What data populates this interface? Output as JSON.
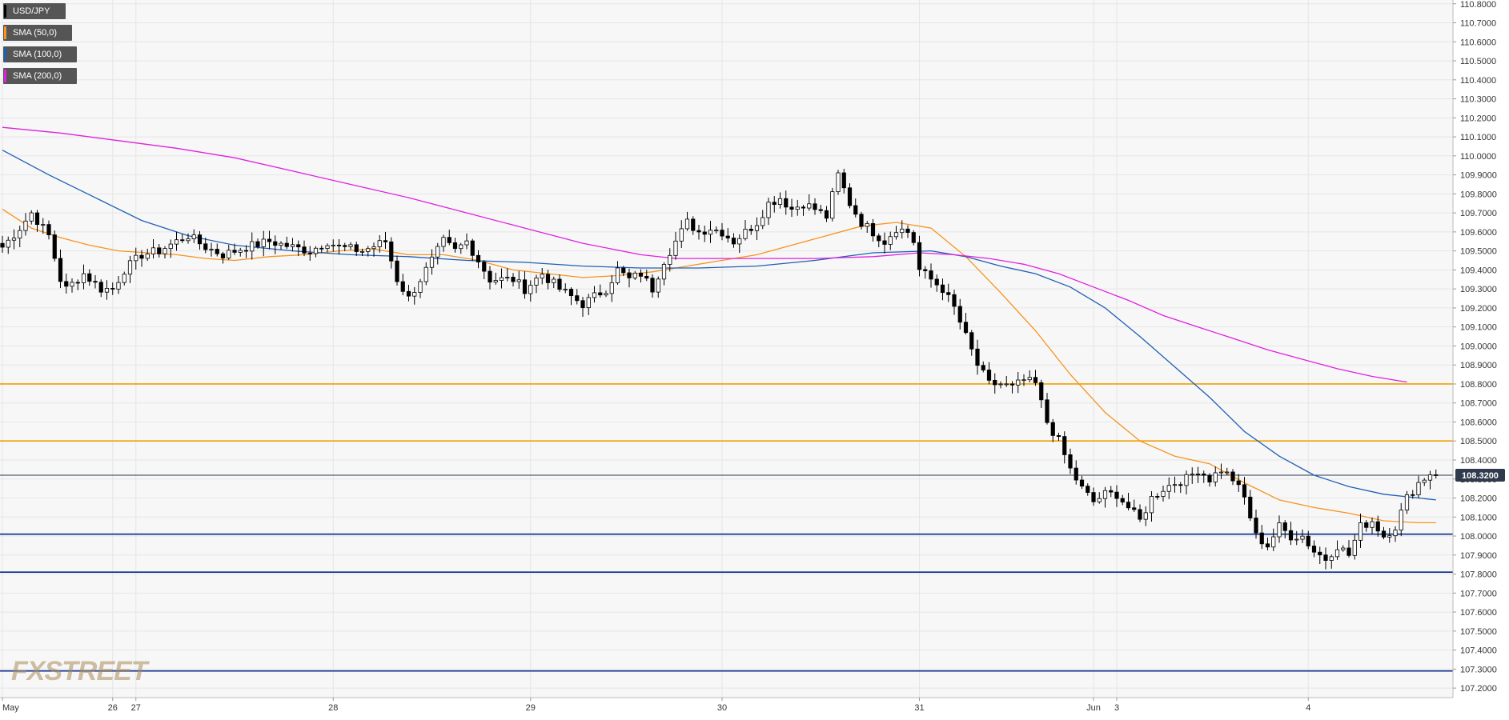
{
  "legend": [
    {
      "label": "USD/JPY",
      "color": "#000000"
    },
    {
      "label": "SMA (50,0)",
      "color": "#f7931e"
    },
    {
      "label": "SMA (100,0)",
      "color": "#1f5fb4"
    },
    {
      "label": "SMA (200,0)",
      "color": "#e020e0"
    }
  ],
  "watermark": "FXSTREET",
  "current_price_label": "108.3200",
  "chart_data": {
    "type": "candlestick",
    "symbol": "USD/JPY",
    "ylim": [
      107.15,
      110.82
    ],
    "y_ticks": [
      "107.2000",
      "107.3000",
      "107.4000",
      "107.5000",
      "107.6000",
      "107.7000",
      "107.8000",
      "107.9000",
      "108.0000",
      "108.1000",
      "108.2000",
      "108.3000",
      "108.4000",
      "108.5000",
      "108.6000",
      "108.7000",
      "108.8000",
      "108.9000",
      "109.0000",
      "109.1000",
      "109.2000",
      "109.3000",
      "109.4000",
      "109.5000",
      "109.6000",
      "109.7000",
      "109.8000",
      "109.9000",
      "110.0000",
      "110.1000",
      "110.2000",
      "110.3000",
      "110.4000",
      "110.5000",
      "110.6000",
      "110.7000",
      "110.8000"
    ],
    "x_ticks": [
      {
        "label": "May",
        "idx": 0
      },
      {
        "label": "26",
        "idx": 19
      },
      {
        "label": "27",
        "idx": 23
      },
      {
        "label": "28",
        "idx": 57
      },
      {
        "label": "29",
        "idx": 91
      },
      {
        "label": "30",
        "idx": 124
      },
      {
        "label": "31",
        "idx": 158
      },
      {
        "label": "Jun",
        "idx": 188
      },
      {
        "label": "3",
        "idx": 192
      },
      {
        "label": "4",
        "idx": 225
      }
    ],
    "num_bars": 248,
    "close_anchors": [
      [
        0,
        109.52
      ],
      [
        3,
        109.62
      ],
      [
        5,
        109.7
      ],
      [
        8,
        109.58
      ],
      [
        10,
        109.35
      ],
      [
        11,
        109.3
      ],
      [
        14,
        109.38
      ],
      [
        17,
        109.3
      ],
      [
        19,
        109.3
      ],
      [
        21,
        109.4
      ],
      [
        24,
        109.48
      ],
      [
        27,
        109.5
      ],
      [
        30,
        109.55
      ],
      [
        32,
        109.58
      ],
      [
        35,
        109.52
      ],
      [
        38,
        109.48
      ],
      [
        42,
        109.52
      ],
      [
        46,
        109.55
      ],
      [
        50,
        109.52
      ],
      [
        53,
        109.5
      ],
      [
        56,
        109.55
      ],
      [
        58,
        109.52
      ],
      [
        62,
        109.5
      ],
      [
        66,
        109.55
      ],
      [
        68,
        109.35
      ],
      [
        70,
        109.25
      ],
      [
        72,
        109.35
      ],
      [
        74,
        109.45
      ],
      [
        76,
        109.55
      ],
      [
        78,
        109.5
      ],
      [
        80,
        109.55
      ],
      [
        82,
        109.45
      ],
      [
        84,
        109.35
      ],
      [
        88,
        109.35
      ],
      [
        90,
        109.3
      ],
      [
        93,
        109.38
      ],
      [
        96,
        109.3
      ],
      [
        100,
        109.22
      ],
      [
        104,
        109.3
      ],
      [
        106,
        109.4
      ],
      [
        108,
        109.35
      ],
      [
        110,
        109.38
      ],
      [
        112,
        109.3
      ],
      [
        114,
        109.45
      ],
      [
        116,
        109.55
      ],
      [
        118,
        109.65
      ],
      [
        120,
        109.6
      ],
      [
        122,
        109.62
      ],
      [
        124,
        109.6
      ],
      [
        126,
        109.55
      ],
      [
        128,
        109.6
      ],
      [
        130,
        109.65
      ],
      [
        132,
        109.75
      ],
      [
        134,
        109.78
      ],
      [
        136,
        109.72
      ],
      [
        138,
        109.75
      ],
      [
        140,
        109.72
      ],
      [
        142,
        109.68
      ],
      [
        144,
        109.9
      ],
      [
        146,
        109.75
      ],
      [
        148,
        109.65
      ],
      [
        150,
        109.6
      ],
      [
        152,
        109.55
      ],
      [
        154,
        109.62
      ],
      [
        156,
        109.6
      ],
      [
        157,
        109.55
      ],
      [
        158,
        109.4
      ],
      [
        160,
        109.35
      ],
      [
        162,
        109.3
      ],
      [
        164,
        109.2
      ],
      [
        166,
        109.05
      ],
      [
        168,
        108.9
      ],
      [
        170,
        108.8
      ],
      [
        172,
        108.8
      ],
      [
        174,
        108.78
      ],
      [
        176,
        108.82
      ],
      [
        178,
        108.8
      ],
      [
        180,
        108.6
      ],
      [
        182,
        108.5
      ],
      [
        184,
        108.35
      ],
      [
        186,
        108.25
      ],
      [
        188,
        108.18
      ],
      [
        190,
        108.22
      ],
      [
        192,
        108.22
      ],
      [
        194,
        108.15
      ],
      [
        196,
        108.08
      ],
      [
        198,
        108.2
      ],
      [
        200,
        108.25
      ],
      [
        202,
        108.28
      ],
      [
        204,
        108.3
      ],
      [
        206,
        108.35
      ],
      [
        208,
        108.3
      ],
      [
        210,
        108.35
      ],
      [
        212,
        108.3
      ],
      [
        214,
        108.2
      ],
      [
        216,
        108.0
      ],
      [
        218,
        107.95
      ],
      [
        220,
        108.05
      ],
      [
        222,
        108.0
      ],
      [
        224,
        108.0
      ],
      [
        226,
        107.92
      ],
      [
        228,
        107.88
      ],
      [
        230,
        107.95
      ],
      [
        232,
        107.9
      ],
      [
        234,
        108.05
      ],
      [
        236,
        108.08
      ],
      [
        238,
        108.0
      ],
      [
        240,
        108.05
      ],
      [
        242,
        108.2
      ],
      [
        244,
        108.28
      ],
      [
        246,
        108.33
      ],
      [
        247,
        108.32
      ]
    ],
    "sma_series": [
      {
        "name": "SMA (50,0)",
        "color": "#f7931e",
        "points": [
          [
            0,
            109.72
          ],
          [
            5,
            109.62
          ],
          [
            10,
            109.57
          ],
          [
            15,
            109.53
          ],
          [
            20,
            109.5
          ],
          [
            25,
            109.49
          ],
          [
            30,
            109.48
          ],
          [
            35,
            109.46
          ],
          [
            40,
            109.45
          ],
          [
            46,
            109.47
          ],
          [
            52,
            109.48
          ],
          [
            58,
            109.5
          ],
          [
            64,
            109.51
          ],
          [
            70,
            109.48
          ],
          [
            76,
            109.48
          ],
          [
            82,
            109.45
          ],
          [
            88,
            109.4
          ],
          [
            94,
            109.38
          ],
          [
            100,
            109.36
          ],
          [
            106,
            109.37
          ],
          [
            112,
            109.39
          ],
          [
            118,
            109.42
          ],
          [
            124,
            109.45
          ],
          [
            130,
            109.48
          ],
          [
            136,
            109.53
          ],
          [
            142,
            109.58
          ],
          [
            148,
            109.63
          ],
          [
            154,
            109.65
          ],
          [
            160,
            109.62
          ],
          [
            166,
            109.47
          ],
          [
            172,
            109.28
          ],
          [
            178,
            109.08
          ],
          [
            184,
            108.85
          ],
          [
            190,
            108.65
          ],
          [
            196,
            108.5
          ],
          [
            202,
            108.42
          ],
          [
            208,
            108.38
          ],
          [
            214,
            108.28
          ],
          [
            220,
            108.19
          ],
          [
            226,
            108.15
          ],
          [
            232,
            108.12
          ],
          [
            238,
            108.08
          ],
          [
            244,
            108.07
          ],
          [
            247,
            108.07
          ]
        ]
      },
      {
        "name": "SMA (100,0)",
        "color": "#1f5fb4",
        "points": [
          [
            0,
            110.03
          ],
          [
            8,
            109.9
          ],
          [
            16,
            109.78
          ],
          [
            24,
            109.66
          ],
          [
            32,
            109.58
          ],
          [
            40,
            109.53
          ],
          [
            50,
            109.5
          ],
          [
            60,
            109.48
          ],
          [
            70,
            109.47
          ],
          [
            80,
            109.45
          ],
          [
            90,
            109.44
          ],
          [
            100,
            109.42
          ],
          [
            110,
            109.41
          ],
          [
            120,
            109.41
          ],
          [
            130,
            109.42
          ],
          [
            140,
            109.45
          ],
          [
            150,
            109.49
          ],
          [
            160,
            109.5
          ],
          [
            166,
            109.47
          ],
          [
            172,
            109.42
          ],
          [
            178,
            109.38
          ],
          [
            184,
            109.31
          ],
          [
            190,
            109.2
          ],
          [
            196,
            109.05
          ],
          [
            202,
            108.89
          ],
          [
            208,
            108.73
          ],
          [
            214,
            108.55
          ],
          [
            220,
            108.42
          ],
          [
            226,
            108.32
          ],
          [
            232,
            108.26
          ],
          [
            238,
            108.22
          ],
          [
            244,
            108.2
          ],
          [
            247,
            108.19
          ]
        ]
      },
      {
        "name": "SMA (200,0)",
        "color": "#e020e0",
        "points": [
          [
            0,
            110.15
          ],
          [
            10,
            110.12
          ],
          [
            20,
            110.08
          ],
          [
            30,
            110.04
          ],
          [
            40,
            109.99
          ],
          [
            50,
            109.92
          ],
          [
            60,
            109.85
          ],
          [
            70,
            109.78
          ],
          [
            80,
            109.7
          ],
          [
            90,
            109.62
          ],
          [
            100,
            109.54
          ],
          [
            110,
            109.48
          ],
          [
            116,
            109.46
          ],
          [
            130,
            109.46
          ],
          [
            140,
            109.46
          ],
          [
            150,
            109.47
          ],
          [
            158,
            109.49
          ],
          [
            164,
            109.48
          ],
          [
            170,
            109.46
          ],
          [
            176,
            109.43
          ],
          [
            182,
            109.38
          ],
          [
            188,
            109.31
          ],
          [
            194,
            109.24
          ],
          [
            200,
            109.16
          ],
          [
            206,
            109.1
          ],
          [
            212,
            109.04
          ],
          [
            218,
            108.98
          ],
          [
            224,
            108.93
          ],
          [
            230,
            108.88
          ],
          [
            236,
            108.84
          ],
          [
            242,
            108.81
          ]
        ]
      }
    ],
    "horizontal_levels": [
      {
        "price": 108.8,
        "color": "#f0a000"
      },
      {
        "price": 108.5,
        "color": "#f0a000"
      },
      {
        "price": 108.01,
        "color": "#0a2a8c"
      },
      {
        "price": 107.81,
        "color": "#0a2a8c"
      },
      {
        "price": 107.29,
        "color": "#0a2a8c"
      }
    ],
    "current_price": 108.32
  }
}
